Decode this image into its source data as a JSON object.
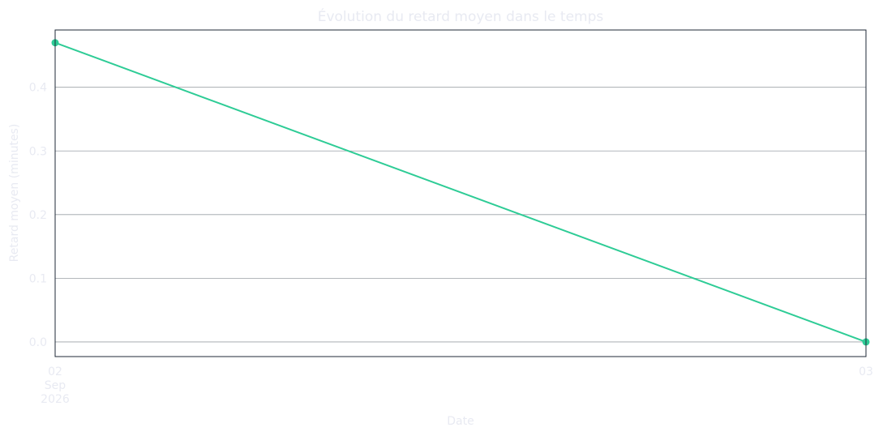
{
  "colors": {
    "line": "#2ecc96",
    "grid": "#9ba0a6",
    "frame": "#1f2937",
    "text": "#e8eaf2",
    "background": "#ffffff"
  },
  "chart_data": {
    "type": "line",
    "title": "Évolution du retard moyen dans le temps",
    "xlabel": "Date",
    "ylabel": "Retard moyen (minutes)",
    "x": [
      "2026-09-02",
      "2026-09-03"
    ],
    "series": [
      {
        "values": [
          0.47,
          0.0
        ],
        "marker": "circle"
      }
    ],
    "ylim": [
      -0.023,
      0.49
    ],
    "yticks": [
      0.0,
      0.1,
      0.2,
      0.3,
      0.4
    ],
    "ytick_labels": [
      "0.0",
      "0.1",
      "0.2",
      "0.3",
      "0.4"
    ],
    "xticks": [
      {
        "x": "2026-09-02",
        "lines": [
          "02",
          "Sep",
          "2026"
        ]
      },
      {
        "x": "2026-09-03",
        "lines": [
          "03"
        ]
      }
    ],
    "grid": "horizontal"
  }
}
